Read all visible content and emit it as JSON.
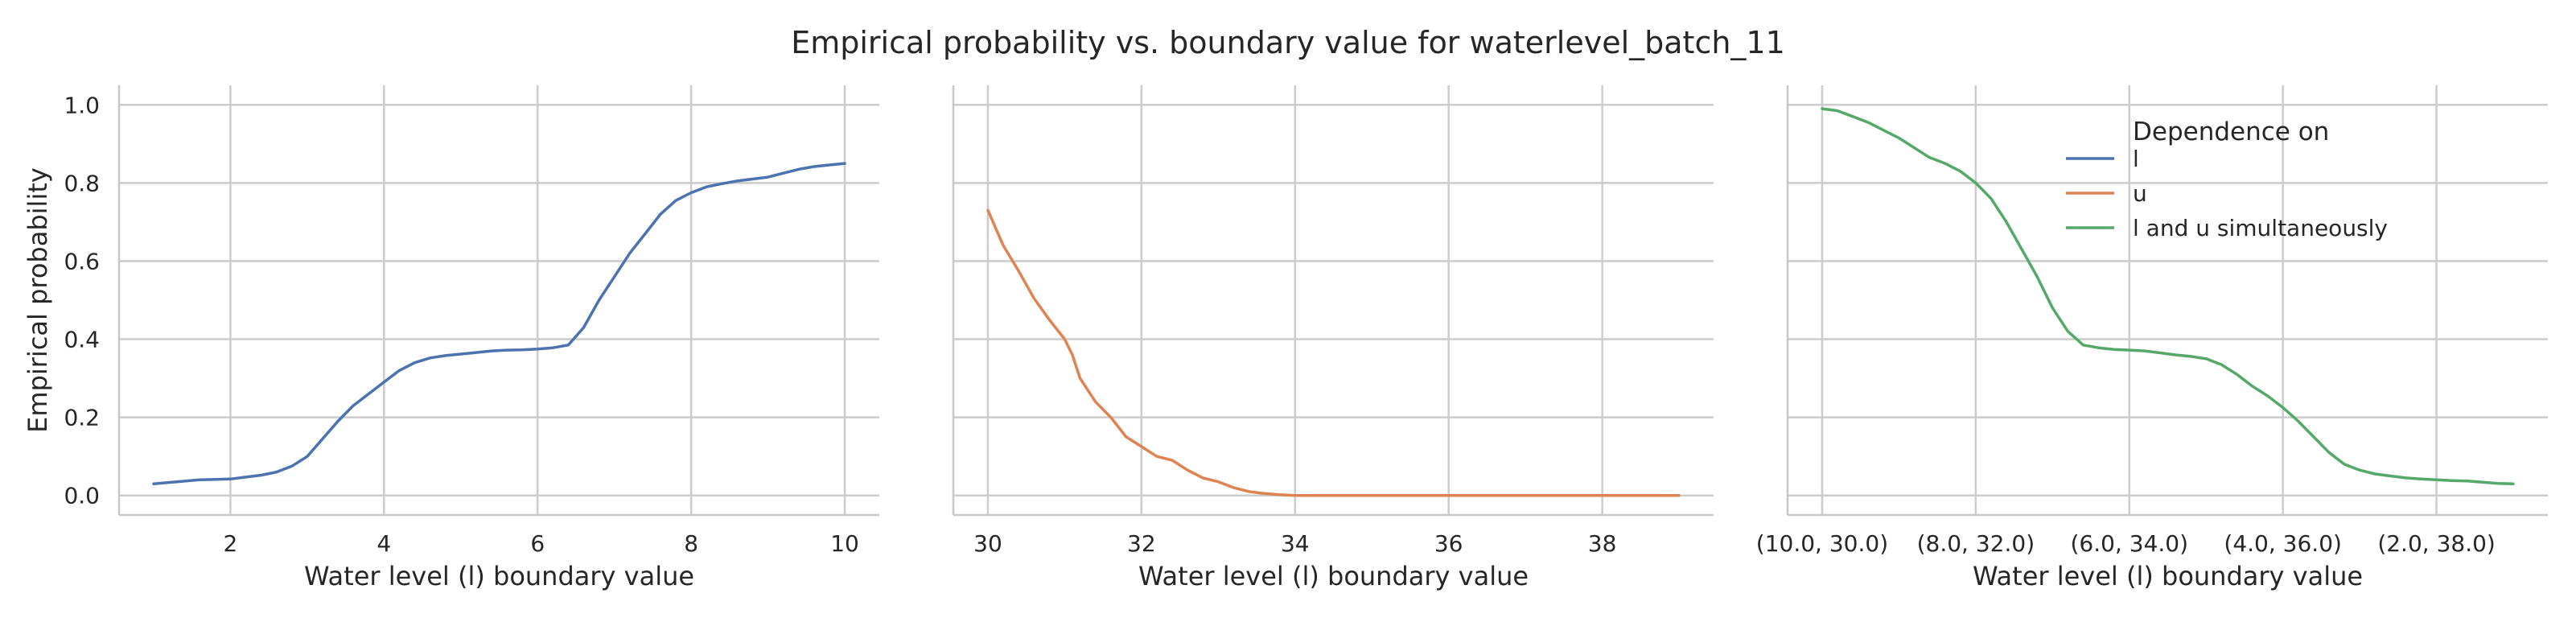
{
  "figure": {
    "title": "Empirical probability vs. boundary value for waterlevel_batch_11",
    "ylabel": "Empirical probability",
    "legend": {
      "title": "Dependence on",
      "placement": "top-right",
      "entries": [
        {
          "label": "l",
          "color": "#4c72b0"
        },
        {
          "label": "u",
          "color": "#dd8452"
        },
        {
          "label": "l and u simultaneously",
          "color": "#55a868"
        }
      ]
    }
  },
  "chart_data": [
    {
      "type": "line",
      "xlabel": "Water level (l) boundary value",
      "ylabel": "Empirical probability",
      "xlim": [
        0.55,
        10.45
      ],
      "ylim": [
        -0.05,
        1.05
      ],
      "xticks": [
        2,
        4,
        6,
        8,
        10
      ],
      "xtick_labels": [
        "2",
        "4",
        "6",
        "8",
        "10"
      ],
      "yticks": [
        0.0,
        0.2,
        0.4,
        0.6,
        0.8,
        1.0
      ],
      "ytick_labels": [
        "0.0",
        "0.2",
        "0.4",
        "0.6",
        "0.8",
        "1.0"
      ],
      "grid": true,
      "series": [
        {
          "name": "l",
          "color": "#4c72b0",
          "x": [
            1.0,
            1.3,
            1.6,
            2.0,
            2.2,
            2.4,
            2.6,
            2.8,
            3.0,
            3.2,
            3.4,
            3.6,
            3.8,
            4.0,
            4.2,
            4.4,
            4.6,
            4.8,
            5.0,
            5.2,
            5.4,
            5.6,
            5.8,
            6.0,
            6.2,
            6.4,
            6.6,
            6.8,
            7.0,
            7.2,
            7.4,
            7.6,
            7.8,
            8.0,
            8.2,
            8.4,
            8.6,
            8.8,
            9.0,
            9.2,
            9.4,
            9.6,
            9.8,
            10.0
          ],
          "y": [
            0.03,
            0.035,
            0.04,
            0.042,
            0.047,
            0.052,
            0.06,
            0.075,
            0.1,
            0.145,
            0.19,
            0.23,
            0.26,
            0.29,
            0.32,
            0.34,
            0.352,
            0.358,
            0.362,
            0.366,
            0.37,
            0.372,
            0.373,
            0.375,
            0.378,
            0.385,
            0.43,
            0.5,
            0.56,
            0.62,
            0.67,
            0.72,
            0.755,
            0.775,
            0.79,
            0.798,
            0.805,
            0.81,
            0.815,
            0.825,
            0.835,
            0.842,
            0.846,
            0.85
          ]
        }
      ]
    },
    {
      "type": "line",
      "xlabel": "Water level (l) boundary value",
      "ylabel": "",
      "xlim": [
        29.55,
        39.45
      ],
      "ylim": [
        -0.05,
        1.05
      ],
      "xticks": [
        30,
        32,
        34,
        36,
        38
      ],
      "xtick_labels": [
        "30",
        "32",
        "34",
        "36",
        "38"
      ],
      "yticks": [
        0.0,
        0.2,
        0.4,
        0.6,
        0.8,
        1.0
      ],
      "ytick_labels": [],
      "grid": true,
      "series": [
        {
          "name": "u",
          "color": "#dd8452",
          "x": [
            30.0,
            30.2,
            30.4,
            30.6,
            30.8,
            31.0,
            31.1,
            31.2,
            31.4,
            31.6,
            31.8,
            32.0,
            32.2,
            32.4,
            32.6,
            32.8,
            33.0,
            33.2,
            33.4,
            33.6,
            33.8,
            34.0,
            34.5,
            35.0,
            36.0,
            37.0,
            38.0,
            39.0
          ],
          "y": [
            0.73,
            0.64,
            0.575,
            0.505,
            0.45,
            0.4,
            0.36,
            0.3,
            0.24,
            0.2,
            0.15,
            0.125,
            0.1,
            0.09,
            0.065,
            0.045,
            0.035,
            0.02,
            0.01,
            0.005,
            0.002,
            0.0,
            0.0,
            0.0,
            0.0,
            0.0,
            0.0,
            0.0
          ]
        }
      ]
    },
    {
      "type": "line",
      "xlabel": "Water level (l) boundary value",
      "ylabel": "",
      "xlim": [
        -0.45,
        9.45
      ],
      "ylim": [
        -0.05,
        1.05
      ],
      "xticks": [
        0,
        2,
        4,
        6,
        8
      ],
      "xtick_labels": [
        "(10.0, 30.0)",
        "(8.0, 32.0)",
        "(6.0, 34.0)",
        "(4.0, 36.0)",
        "(2.0, 38.0)"
      ],
      "yticks": [
        0.0,
        0.2,
        0.4,
        0.6,
        0.8,
        1.0
      ],
      "ytick_labels": [],
      "grid": true,
      "series": [
        {
          "name": "l and u simultaneously",
          "color": "#55a868",
          "x": [
            0.0,
            0.2,
            0.4,
            0.6,
            0.8,
            1.0,
            1.2,
            1.4,
            1.6,
            1.8,
            2.0,
            2.2,
            2.4,
            2.6,
            2.8,
            3.0,
            3.2,
            3.4,
            3.6,
            3.8,
            4.0,
            4.2,
            4.4,
            4.6,
            4.8,
            5.0,
            5.2,
            5.4,
            5.6,
            5.8,
            6.0,
            6.2,
            6.4,
            6.6,
            6.8,
            7.0,
            7.2,
            7.4,
            7.6,
            7.8,
            8.0,
            8.2,
            8.4,
            8.6,
            8.8,
            9.0
          ],
          "y": [
            0.99,
            0.985,
            0.97,
            0.955,
            0.935,
            0.915,
            0.89,
            0.865,
            0.85,
            0.83,
            0.8,
            0.76,
            0.7,
            0.63,
            0.56,
            0.48,
            0.42,
            0.385,
            0.378,
            0.374,
            0.372,
            0.37,
            0.365,
            0.36,
            0.356,
            0.35,
            0.335,
            0.31,
            0.28,
            0.255,
            0.225,
            0.19,
            0.15,
            0.11,
            0.08,
            0.065,
            0.055,
            0.05,
            0.045,
            0.042,
            0.04,
            0.038,
            0.037,
            0.034,
            0.031,
            0.03
          ]
        }
      ]
    }
  ]
}
